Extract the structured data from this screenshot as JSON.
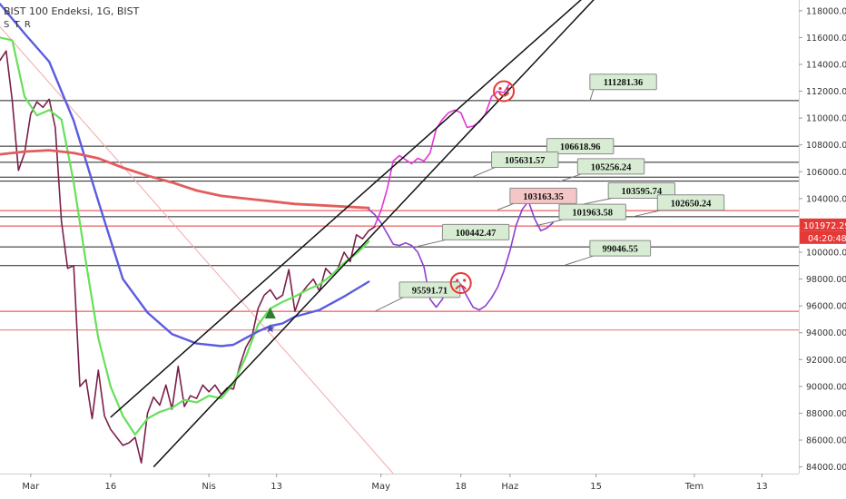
{
  "header": {
    "title": "BIST 100 Endeksi, 1G, BIST",
    "indicator": "S T R"
  },
  "chart_data": {
    "type": "line",
    "ylim": [
      83500,
      118800
    ],
    "y_ticks": [
      84000,
      86000,
      88000,
      90000,
      92000,
      94000,
      96000,
      98000,
      100000,
      102000,
      104000,
      106000,
      108000,
      110000,
      112000,
      114000,
      116000,
      118000
    ],
    "y_tick_labels": [
      "84000.00",
      "86000.00",
      "88000.00",
      "90000.00",
      "92000.00",
      "94000.00",
      "96000.00",
      "98000.00",
      "100000.00",
      "102000.00",
      "104000.00",
      "106000.00",
      "108000.00",
      "110000.00",
      "112000.00",
      "114000.00",
      "116000.00",
      "118000.00"
    ],
    "x_range": [
      0,
      130
    ],
    "x_ticks": [
      {
        "label": "Mar",
        "x": 5
      },
      {
        "label": "16",
        "x": 18
      },
      {
        "label": "Nis",
        "x": 34
      },
      {
        "label": "13",
        "x": 45
      },
      {
        "label": "May",
        "x": 62
      },
      {
        "label": "18",
        "x": 75
      },
      {
        "label": "Haz",
        "x": 83
      },
      {
        "label": "15",
        "x": 97
      },
      {
        "label": "Tem",
        "x": 113
      },
      {
        "label": "13",
        "x": 124
      }
    ],
    "current_price": {
      "value": 101972.29,
      "label": "101972.29",
      "countdown": "04:20:48",
      "color": "#e53935"
    },
    "horizontal_levels": [
      {
        "value": 111300,
        "color": "#222222"
      },
      {
        "value": 107900,
        "color": "#222222"
      },
      {
        "value": 106700,
        "color": "#222222"
      },
      {
        "value": 105600,
        "color": "#222222"
      },
      {
        "value": 105300,
        "color": "#222222"
      },
      {
        "value": 103100,
        "color": "#e53935"
      },
      {
        "value": 102650,
        "color": "#222222"
      },
      {
        "value": 101950,
        "color": "#e53935"
      },
      {
        "value": 100400,
        "color": "#222222"
      },
      {
        "value": 99000,
        "color": "#222222"
      },
      {
        "value": 95600,
        "color": "#e53935"
      },
      {
        "value": 94200,
        "color": "#e57373"
      }
    ],
    "series": [
      {
        "color": "#7b1f4a",
        "x": [
          0,
          1,
          2,
          3,
          4,
          5,
          6,
          7,
          8,
          9,
          10,
          11,
          12,
          13,
          14,
          15,
          16,
          17,
          18,
          19,
          20,
          21,
          22,
          23,
          24,
          25,
          26,
          27,
          28,
          29,
          30,
          31,
          32,
          33,
          34,
          35,
          36,
          37,
          38,
          39,
          40,
          41,
          42,
          43,
          44,
          45,
          46,
          47,
          48,
          49,
          50,
          51,
          52,
          53,
          54,
          55,
          56,
          57,
          58,
          59,
          60,
          61
        ],
        "values": [
          114300,
          115000,
          111300,
          106100,
          107400,
          110300,
          111200,
          110800,
          111400,
          109300,
          102300,
          98800,
          99000,
          90000,
          90500,
          87600,
          91200,
          87800,
          86800,
          86200,
          85600,
          85800,
          86200,
          84300,
          88000,
          89200,
          88600,
          90100,
          88300,
          91500,
          88500,
          89300,
          89100,
          90100,
          89600,
          90100,
          89400,
          89900,
          89800,
          91500,
          92900,
          93700,
          95800,
          96800,
          97200,
          96500,
          96800,
          98700,
          95600,
          96900,
          97500,
          98000,
          97100,
          98800,
          98300,
          98800,
          100000,
          99300,
          101300,
          101000,
          101600,
          101900
        ]
      },
      {
        "color": "#66e05a",
        "x": [
          0,
          2,
          4,
          6,
          8,
          10,
          12,
          14,
          16,
          18,
          20,
          22,
          24,
          26,
          28,
          30,
          32,
          34,
          36,
          38,
          40,
          42,
          44,
          46,
          48,
          50,
          52,
          54,
          56,
          58,
          60
        ],
        "values": [
          116000,
          115800,
          111600,
          110200,
          110600,
          109900,
          105200,
          99200,
          93600,
          90000,
          87800,
          86400,
          87600,
          88100,
          88400,
          89000,
          88800,
          89300,
          89100,
          90200,
          92200,
          94600,
          95800,
          96300,
          96700,
          97200,
          97600,
          98300,
          99200,
          99900,
          100800
        ]
      },
      {
        "color": "#5b5be0",
        "x": [
          0,
          4,
          8,
          12,
          16,
          20,
          24,
          28,
          32,
          36,
          38,
          40,
          42,
          44,
          46,
          48,
          52,
          56,
          60
        ],
        "values": [
          118500,
          116300,
          114200,
          109800,
          103800,
          98000,
          95500,
          93900,
          93200,
          93000,
          93100,
          93600,
          94100,
          94500,
          94700,
          95200,
          95700,
          96700,
          97800
        ]
      },
      {
        "color": "#e25d5d",
        "x": [
          0,
          4,
          8,
          12,
          16,
          20,
          24,
          28,
          32,
          36,
          40,
          44,
          48,
          52,
          56,
          60
        ],
        "values": [
          107300,
          107500,
          107600,
          107400,
          107000,
          106300,
          105700,
          105200,
          104600,
          104200,
          104000,
          103800,
          103600,
          103500,
          103400,
          103300
        ]
      },
      {
        "color": "#e535d6",
        "x": [
          61,
          62,
          63,
          64,
          65,
          66,
          67,
          68,
          69,
          70,
          71,
          72,
          73,
          74,
          75,
          76,
          77,
          78,
          79,
          80,
          81,
          82,
          83
        ],
        "values": [
          102000,
          103100,
          104700,
          106800,
          107200,
          106900,
          106600,
          107000,
          106800,
          107400,
          109200,
          109900,
          110400,
          110600,
          110400,
          109300,
          109400,
          109700,
          110300,
          111600,
          112000,
          111900,
          112600
        ]
      },
      {
        "color": "#8d3fd0",
        "x": [
          60,
          61,
          62,
          63,
          64,
          65,
          66,
          67,
          68,
          69,
          70,
          71,
          72,
          73,
          74,
          75,
          76,
          77,
          78,
          79,
          80,
          81,
          82,
          83,
          84,
          85,
          86,
          87,
          88,
          89,
          90
        ],
        "values": [
          103200,
          102800,
          102200,
          101400,
          100600,
          100500,
          100700,
          100500,
          100000,
          98900,
          96500,
          95900,
          96500,
          97700,
          97800,
          97600,
          96700,
          95900,
          95700,
          96000,
          96600,
          97400,
          98600,
          100100,
          102000,
          103200,
          103800,
          102500,
          101600,
          101800,
          102200
        ]
      }
    ],
    "channel_lines": [
      {
        "color": "#111111",
        "x": [
          18,
          95
        ],
        "values": [
          87700,
          119000
        ]
      },
      {
        "color": "#111111",
        "x": [
          25,
          97
        ],
        "values": [
          84000,
          119000
        ]
      }
    ],
    "diagonal_line": {
      "color": "#f4a8a8",
      "x": [
        0,
        64
      ],
      "values": [
        116800,
        83500
      ]
    },
    "annotations": [
      {
        "text": "111281.36",
        "x": 96,
        "y": 111281.36,
        "box_x": 96,
        "box_y": 112700,
        "fill": "#d7ecd2"
      },
      {
        "text": "106618.96",
        "x": 86,
        "y": 106618.96,
        "box_x": 89,
        "box_y": 107900,
        "fill": "#d7ecd2"
      },
      {
        "text": "105631.57",
        "x": 77,
        "y": 105631.57,
        "box_x": 80,
        "box_y": 106900,
        "fill": "#d7ecd2"
      },
      {
        "text": "105256.24",
        "x": 91,
        "y": 105256.24,
        "box_x": 94,
        "box_y": 106400,
        "fill": "#d7ecd2"
      },
      {
        "text": "103595.74",
        "x": 95,
        "y": 103595.74,
        "box_x": 99,
        "box_y": 104600,
        "fill": "#d7ecd2"
      },
      {
        "text": "103163.35",
        "x": 81,
        "y": 103163.35,
        "box_x": 83,
        "box_y": 104200,
        "fill": "#f4c6c6"
      },
      {
        "text": "102650.24",
        "x": 103,
        "y": 102650.24,
        "box_x": 107,
        "box_y": 103700,
        "fill": "#d7ecd2"
      },
      {
        "text": "101963.58",
        "x": 87,
        "y": 101963.58,
        "box_x": 91,
        "box_y": 103000,
        "fill": "#d7ecd2"
      },
      {
        "text": "100442.47",
        "x": 68,
        "y": 100442.47,
        "box_x": 72,
        "box_y": 101500,
        "fill": "#d7ecd2"
      },
      {
        "text": "99046.55",
        "x": 92,
        "y": 99046.55,
        "box_x": 96,
        "box_y": 100300,
        "fill": "#d7ecd2"
      },
      {
        "text": "95591.71",
        "x": 61,
        "y": 95591.71,
        "box_x": 65,
        "box_y": 97200,
        "fill": "#d7ecd2"
      }
    ],
    "markers": [
      {
        "type": "happy-face",
        "x": 82,
        "y": 112000,
        "color": "#e53935"
      },
      {
        "type": "sad-face",
        "x": 75,
        "y": 97700,
        "color": "#e53935"
      },
      {
        "type": "up-triangle",
        "x": 44,
        "y": 95400,
        "color": "#2e7d32"
      },
      {
        "type": "star",
        "x": 44,
        "y": 94300,
        "color": "#3f51b5"
      }
    ]
  }
}
